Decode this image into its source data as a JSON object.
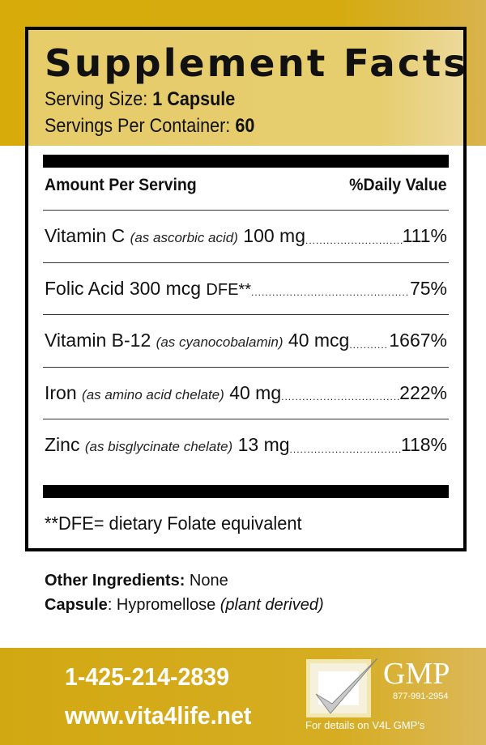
{
  "title": "Supplement Facts",
  "serving_size_label": "Serving Size:",
  "serving_size_value": "1 Capsule",
  "servings_label": "Servings Per Container:",
  "servings_value": "60",
  "header": {
    "amount": "Amount Per Serving",
    "dv": "%Daily Value"
  },
  "rows": [
    {
      "name": "Vitamin C",
      "source": "(as ascorbic acid)",
      "amount": "100 mg",
      "dv": "111%"
    },
    {
      "name": "Folic Acid 300 mcg",
      "source": "DFE**",
      "amount": "",
      "dv": "75%"
    },
    {
      "name": "Vitamin B-12",
      "source": "(as cyanocobalamin)",
      "amount": "40 mcg",
      "dv": "1667%"
    },
    {
      "name": "Iron",
      "source": "(as amino acid chelate)",
      "amount": "40 mg",
      "dv": "222%"
    },
    {
      "name": "Zinc",
      "source": "(as bisglycinate chelate)",
      "amount": "13 mg",
      "dv": "118%"
    }
  ],
  "footnote": "**DFE= dietary Folate equivalent",
  "other_label": "Other Ingredients:",
  "other_value": "None",
  "capsule_label": "Capsule",
  "capsule_value": ": Hypromellose",
  "capsule_note": "(plant derived)",
  "phone": "1-425-214-2839",
  "website": "www.vita4life.net",
  "gmp": {
    "title": "GMP",
    "phone": "877-991-2954",
    "details": "For details on V4L GMP’s"
  },
  "colors": {
    "gold": "#d6ab0a",
    "light_gold": "#e7cc6a"
  }
}
